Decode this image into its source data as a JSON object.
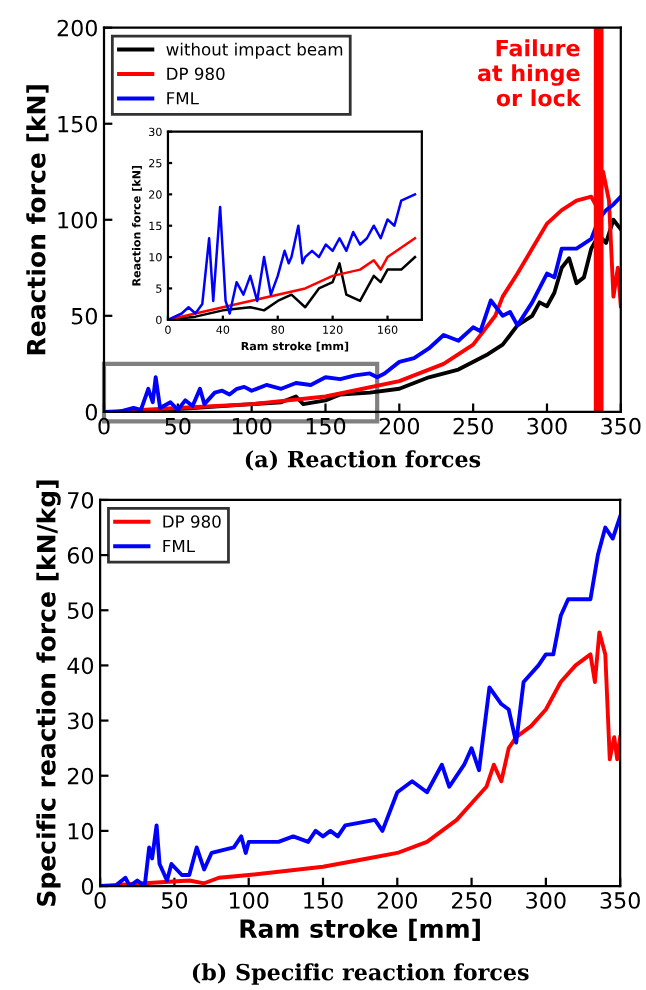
{
  "chart_data": [
    {
      "type": "line",
      "title": "(a) Reaction forces",
      "ylabel": "Reaction force [kN]",
      "xlim": [
        0,
        350
      ],
      "ylim": [
        0,
        200
      ],
      "xticks": [
        0,
        50,
        100,
        150,
        200,
        250,
        300,
        350
      ],
      "yticks": [
        0,
        50,
        100,
        150,
        200
      ],
      "legend": "top left",
      "grid": false,
      "marker": "none",
      "line_style": "solid",
      "ref_lines": [
        {
          "axis": "x",
          "value": 335,
          "label": "Failure at hinge or lock",
          "color": "#ff0000"
        }
      ],
      "series": [
        {
          "name": "without impact beam",
          "color": "#000000",
          "x": [
            0,
            20,
            40,
            60,
            80,
            100,
            120,
            130,
            135,
            150,
            160,
            180,
            200,
            220,
            240,
            260,
            270,
            280,
            290,
            295,
            300,
            305,
            310,
            315,
            320,
            325,
            330,
            335,
            340,
            345,
            350
          ],
          "values": [
            0,
            0,
            1,
            2,
            3,
            4,
            5,
            8,
            4,
            6,
            9,
            10,
            12,
            18,
            22,
            30,
            35,
            45,
            50,
            57,
            55,
            62,
            75,
            80,
            67,
            70,
            85,
            92,
            88,
            100,
            95
          ]
        },
        {
          "name": "DP 980",
          "color": "#ff0000",
          "x": [
            0,
            50,
            100,
            150,
            200,
            230,
            250,
            265,
            270,
            280,
            290,
            300,
            310,
            320,
            330,
            335,
            338,
            342,
            345,
            348,
            350
          ],
          "values": [
            0,
            2,
            4,
            8,
            16,
            25,
            35,
            50,
            60,
            72,
            85,
            98,
            105,
            110,
            112,
            105,
            125,
            110,
            60,
            75,
            55
          ]
        },
        {
          "name": "FML",
          "color": "#0000ff",
          "x": [
            0,
            10,
            20,
            25,
            30,
            33,
            35,
            38,
            45,
            50,
            55,
            60,
            65,
            68,
            75,
            80,
            85,
            90,
            95,
            100,
            110,
            120,
            130,
            140,
            150,
            160,
            170,
            180,
            185,
            190,
            200,
            210,
            220,
            230,
            240,
            250,
            255,
            262,
            270,
            275,
            280,
            290,
            300,
            305,
            310,
            320,
            330,
            335,
            340,
            345,
            350
          ],
          "values": [
            0,
            0,
            2,
            1,
            12,
            5,
            18,
            2,
            5,
            1,
            6,
            3,
            12,
            4,
            10,
            11,
            9,
            12,
            13,
            11,
            14,
            12,
            15,
            14,
            18,
            17,
            19,
            20,
            18,
            20,
            26,
            28,
            33,
            40,
            37,
            44,
            42,
            58,
            50,
            52,
            45,
            57,
            72,
            70,
            85,
            85,
            90,
            100,
            105,
            108,
            112
          ]
        }
      ]
    },
    {
      "type": "line",
      "xlabel": "Ram stroke [mm]",
      "ylabel": "Reaction force [kN]",
      "xlim": [
        0,
        185
      ],
      "ylim": [
        0,
        30
      ],
      "xticks": [
        0,
        40,
        80,
        120,
        160
      ],
      "yticks": [
        0,
        5,
        10,
        15,
        20,
        25,
        30
      ],
      "grid": false,
      "marker": "none",
      "line_style": "solid",
      "series": [
        {
          "color": "#000000",
          "x": [
            0,
            20,
            40,
            60,
            70,
            80,
            90,
            100,
            110,
            120,
            125,
            130,
            140,
            150,
            155,
            160,
            170,
            180
          ],
          "values": [
            0,
            0.5,
            1.5,
            2,
            1.5,
            3,
            4,
            2,
            5,
            6,
            9,
            4,
            3,
            7,
            6,
            8,
            8,
            10
          ]
        },
        {
          "color": "#ff0000",
          "x": [
            0,
            20,
            40,
            60,
            80,
            100,
            120,
            140,
            150,
            155,
            160,
            180
          ],
          "values": [
            0,
            1,
            2,
            3,
            4,
            5,
            7,
            8,
            9.5,
            8,
            10,
            13
          ]
        },
        {
          "color": "#0000ff",
          "x": [
            0,
            10,
            15,
            20,
            25,
            30,
            33,
            38,
            42,
            45,
            50,
            55,
            60,
            65,
            70,
            75,
            80,
            85,
            88,
            90,
            95,
            98,
            100,
            105,
            110,
            115,
            120,
            125,
            130,
            135,
            140,
            145,
            150,
            155,
            160,
            165,
            170,
            180
          ],
          "values": [
            0,
            1,
            2,
            1,
            2.5,
            13,
            3,
            18,
            3,
            1,
            6,
            4,
            7,
            3,
            10,
            4,
            7,
            11,
            9,
            10,
            15,
            9,
            10,
            11,
            10,
            12,
            11,
            13,
            11,
            14,
            12,
            13,
            15,
            13,
            16,
            15,
            19,
            20
          ]
        }
      ]
    },
    {
      "type": "line",
      "title": "(b) Specific reaction forces",
      "xlabel": "Ram stroke [mm]",
      "ylabel": "Specific reaction force [kN/kg]",
      "xlim": [
        0,
        350
      ],
      "ylim": [
        0,
        70
      ],
      "xticks": [
        0,
        50,
        100,
        150,
        200,
        250,
        300,
        350
      ],
      "yticks": [
        0,
        10,
        20,
        30,
        40,
        50,
        60,
        70
      ],
      "legend": "top left",
      "grid": false,
      "marker": "none",
      "line_style": "solid",
      "series": [
        {
          "name": "DP 980",
          "color": "#ff0000",
          "x": [
            0,
            30,
            60,
            70,
            80,
            100,
            150,
            160,
            180,
            200,
            220,
            240,
            250,
            260,
            265,
            270,
            275,
            280,
            290,
            300,
            310,
            320,
            330,
            333,
            336,
            340,
            343,
            346,
            348,
            350
          ],
          "values": [
            0,
            0.5,
            1,
            0.5,
            1.5,
            2,
            3.5,
            4,
            5,
            6,
            8,
            12,
            15,
            18,
            22,
            19,
            25,
            27,
            29,
            32,
            37,
            40,
            42,
            37,
            46,
            42,
            23,
            27,
            23,
            27
          ]
        },
        {
          "name": "FML",
          "color": "#0000ff",
          "x": [
            0,
            10,
            17,
            20,
            25,
            30,
            33,
            35,
            38,
            40,
            45,
            48,
            55,
            60,
            65,
            70,
            75,
            90,
            95,
            98,
            100,
            120,
            130,
            140,
            145,
            150,
            155,
            160,
            165,
            185,
            190,
            200,
            210,
            220,
            230,
            235,
            245,
            250,
            255,
            262,
            270,
            275,
            280,
            285,
            295,
            300,
            305,
            310,
            315,
            330,
            335,
            340,
            345,
            350
          ],
          "values": [
            0,
            0,
            1.5,
            0,
            1,
            0,
            7,
            5,
            11,
            4,
            1,
            4,
            2,
            2,
            7,
            3,
            6,
            7,
            9,
            6,
            8,
            8,
            9,
            8,
            10,
            9,
            10,
            9,
            11,
            12,
            10,
            17,
            19,
            17,
            22,
            18,
            22,
            25,
            21,
            36,
            33,
            32,
            26,
            37,
            40,
            42,
            42,
            49,
            52,
            52,
            60,
            65,
            63,
            67
          ]
        }
      ]
    }
  ]
}
